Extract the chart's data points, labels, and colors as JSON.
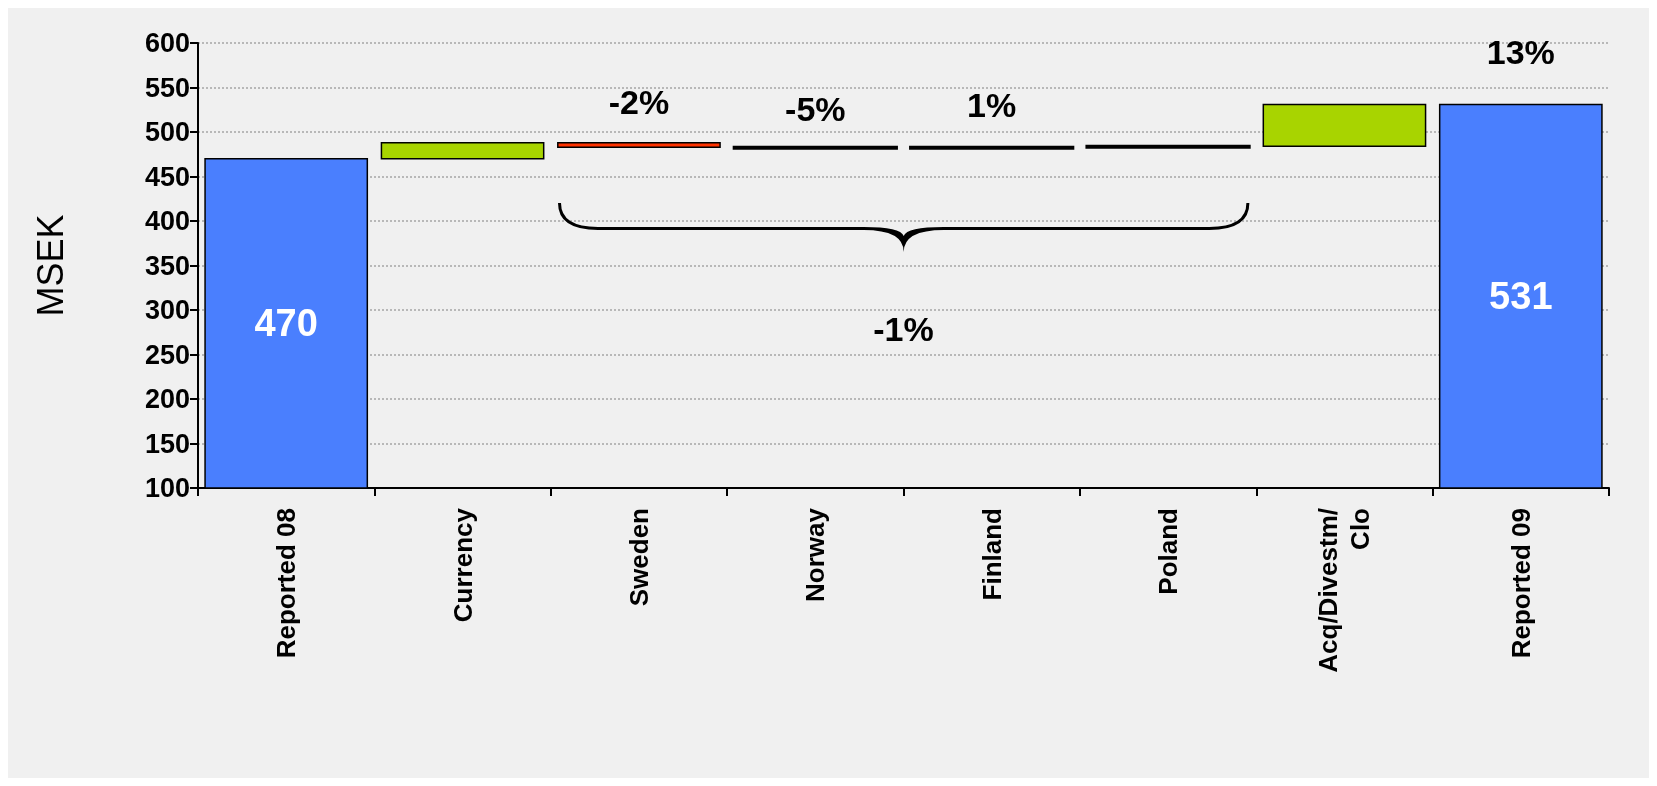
{
  "chart_data": {
    "type": "bar",
    "ylabel": "MSEK",
    "categories": [
      "Reported 08",
      "Currency",
      "Sweden",
      "Norway",
      "Finland",
      "Poland",
      "Acq/Divestm/\nClo",
      "Reported 09"
    ],
    "values": [
      470,
      18,
      -5,
      -1,
      1,
      1,
      47,
      531
    ],
    "base": [
      0,
      470,
      488,
      483,
      482,
      483,
      484,
      0
    ],
    "colors": [
      "#4a7ffe",
      "#a8d400",
      "#ff3300",
      "#000000",
      "#000000",
      "#000000",
      "#a8d400",
      "#4a7ffe"
    ],
    "value_labels": [
      "470",
      null,
      null,
      null,
      null,
      null,
      null,
      "531"
    ],
    "annotations": [
      "-2%",
      "-5%",
      "1%",
      "13%",
      "-1%"
    ],
    "ylim": [
      100,
      600
    ],
    "yticks": [
      100,
      150,
      200,
      250,
      300,
      350,
      400,
      450,
      500,
      550,
      600
    ],
    "grid": "y"
  }
}
